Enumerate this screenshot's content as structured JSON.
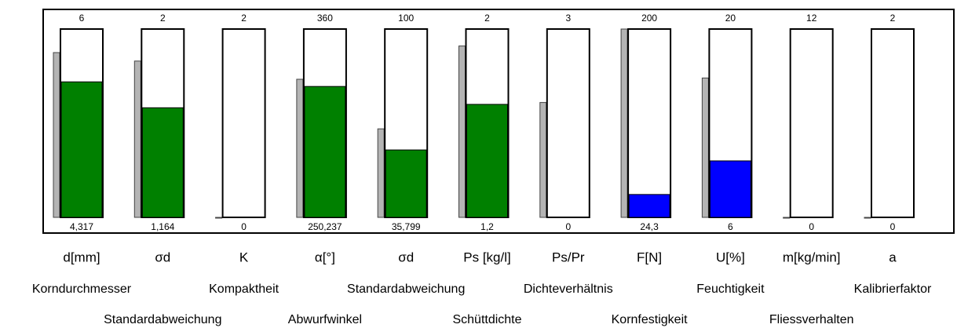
{
  "gauges": [
    {
      "symbol": "d[mm]",
      "description": "Korndurchmesser",
      "max": 6,
      "value": {
        "value": 4.317,
        "label": "4,317"
      },
      "reference": 5.25,
      "color": "#008000"
    },
    {
      "symbol": "σd",
      "description": "Standardabweichung",
      "max": 2,
      "value": {
        "value": 1.164,
        "label": "1,164"
      },
      "reference": 1.66,
      "color": "#008000"
    },
    {
      "symbol": "K",
      "description": "Kompaktheit",
      "max": 2,
      "value": 0,
      "reference": 0,
      "color": "#008000"
    },
    {
      "symbol": "α[°]",
      "description": "Abwurfwinkel",
      "max": 360,
      "value": {
        "value": 250.237,
        "label": "250,237"
      },
      "reference": 264,
      "color": "#008000"
    },
    {
      "symbol": "σd",
      "description": "Standardabweichung",
      "max": 100,
      "value": {
        "value": 35.799,
        "label": "35,799"
      },
      "reference": 47,
      "color": "#008000"
    },
    {
      "symbol": "Ps [kg/l]",
      "description": "Schüttdichte",
      "max": 2,
      "value": {
        "value": 1.2,
        "label": "1,2"
      },
      "reference": 1.82,
      "color": "#008000"
    },
    {
      "symbol": "Ps/Pr",
      "description": "Dichteverhältnis",
      "max": 3,
      "value": 0,
      "reference": 1.83,
      "color": "#008000"
    },
    {
      "symbol": "F[N]",
      "description": "Kornfestigkeit",
      "max": 200,
      "value": {
        "value": 24.3,
        "label": "24,3"
      },
      "reference": 200,
      "color": "#0000ff"
    },
    {
      "symbol": "U[%]",
      "description": "Feuchtigkeit",
      "max": 20,
      "value": 6,
      "reference": 14.8,
      "color": "#0000ff"
    },
    {
      "symbol": "m[kg/min]",
      "description": "Fliessverhalten",
      "max": 12,
      "value": 0,
      "reference": 0,
      "color": "#008000"
    },
    {
      "symbol": "a",
      "description": "Kalibrierfaktor",
      "max": 2,
      "value": 0,
      "reference": 0,
      "color": "#008000"
    }
  ]
}
